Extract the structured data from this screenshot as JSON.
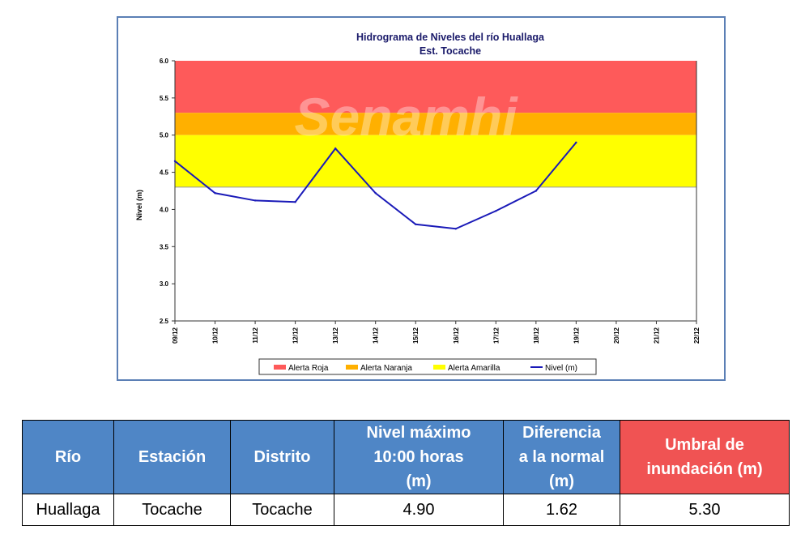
{
  "chart_data": {
    "type": "line",
    "title": "Hidrograma de Niveles del río Huallaga",
    "subtitle": "Est. Tocache",
    "ylabel": "Nivel (m)",
    "xlabel": "",
    "ylim": [
      2.5,
      6.0
    ],
    "y_ticks": [
      "2.5",
      "3.0",
      "3.5",
      "4.0",
      "4.5",
      "5.0",
      "5.5",
      "6.0"
    ],
    "categories": [
      "09/12",
      "10/12",
      "11/12",
      "12/12",
      "13/12",
      "14/12",
      "15/12",
      "16/12",
      "17/12",
      "18/12",
      "19/12",
      "20/12",
      "21/12",
      "22/12"
    ],
    "series": [
      {
        "name": "Nivel (m)",
        "color": "#1a1ab8",
        "values": [
          4.65,
          4.22,
          4.12,
          4.1,
          4.82,
          4.22,
          3.8,
          3.74,
          3.98,
          4.25,
          4.9,
          null,
          null,
          null
        ]
      }
    ],
    "bands": [
      {
        "name": "Alerta Roja",
        "color": "#fe5a5a",
        "from": 5.3,
        "to": 6.0
      },
      {
        "name": "Alerta Naranja",
        "color": "#ffb000",
        "from": 5.0,
        "to": 5.3
      },
      {
        "name": "Alerta Amarilla",
        "color": "#ffff00",
        "from": 4.3,
        "to": 5.0
      }
    ],
    "legend": [
      "Alerta Roja",
      "Alerta Naranja",
      "Alerta Amarilla",
      "Nivel (m)"
    ],
    "legend_position": "bottom",
    "grid": false,
    "watermark": "Senamhi"
  },
  "table": {
    "headers": [
      "Río",
      "Estación",
      "Distrito",
      "Nivel máximo\n10:00 horas\n(m)",
      "Diferencia\na la normal\n(m)",
      "Umbral de\ninundación (m)"
    ],
    "row": [
      "Huallaga",
      "Tocache",
      "Tocache",
      "4.90",
      "1.62",
      "5.30"
    ]
  }
}
